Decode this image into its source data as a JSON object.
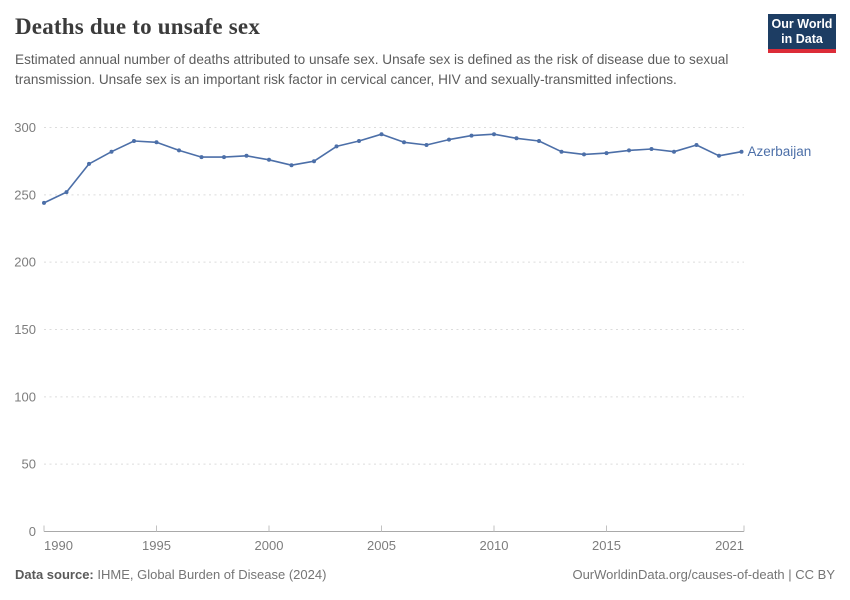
{
  "header": {
    "title": "Deaths due to unsafe sex",
    "subtitle": "Estimated annual number of deaths attributed to unsafe sex. Unsafe sex is defined as the risk of disease due to sexual transmission. Unsafe sex is an important risk factor in cervical cancer, HIV and sexually-transmitted infections.",
    "logo_line1": "Our World",
    "logo_line2": "in Data",
    "logo_bg_color": "#1d3d63",
    "logo_bar_color": "#dc2c38"
  },
  "chart_data": {
    "type": "line",
    "title": "Deaths due to unsafe sex",
    "x": [
      1990,
      1991,
      1992,
      1993,
      1994,
      1995,
      1996,
      1997,
      1998,
      1999,
      2000,
      2001,
      2002,
      2003,
      2004,
      2005,
      2006,
      2007,
      2008,
      2009,
      2010,
      2011,
      2012,
      2013,
      2014,
      2015,
      2016,
      2017,
      2018,
      2019,
      2020,
      2021
    ],
    "series": [
      {
        "name": "Azerbaijan",
        "color": "#4c6fa8",
        "values": [
          244,
          252,
          273,
          282,
          290,
          289,
          283,
          278,
          278,
          279,
          276,
          272,
          275,
          286,
          290,
          295,
          289,
          287,
          291,
          294,
          295,
          292,
          290,
          282,
          280,
          281,
          283,
          284,
          282,
          287,
          279,
          282
        ]
      }
    ],
    "xlabel": "",
    "ylabel": "",
    "ylim": [
      0,
      300
    ],
    "yticks": [
      0,
      50,
      100,
      150,
      200,
      250,
      300
    ],
    "xticks": [
      1990,
      1995,
      2000,
      2005,
      2010,
      2015,
      2021
    ],
    "grid": "horizontal-dashed",
    "legend": "line-end-label",
    "grid_color": "#dcdcdc",
    "axis_color": "#a9a9a9",
    "tick_mark_color": "#c2c2c2",
    "tick_label_color": "#7d7d7d"
  },
  "footer": {
    "source_label": "Data source:",
    "source_text": " IHME, Global Burden of Disease (2024)",
    "license_text": "OurWorldinData.org/causes-of-death | CC BY"
  }
}
